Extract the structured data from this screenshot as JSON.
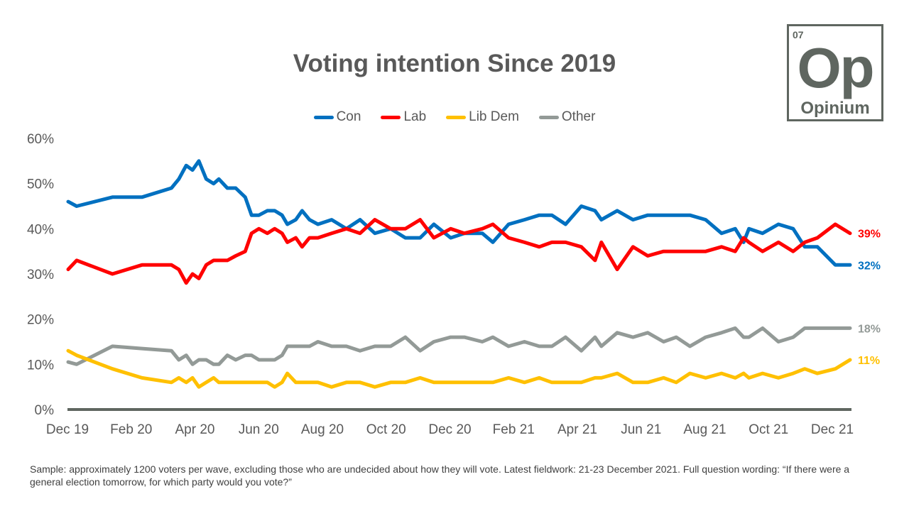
{
  "logo": {
    "number": "07",
    "symbol": "Op",
    "name": "Opinium"
  },
  "footer": "Sample: approximately 1200 voters per wave, excluding those who are undecided about how they will vote. Latest fieldwork: 21-23 December 2021. Full question wording: “If there were a general election tomorrow, for which party would you vote?”",
  "chart_data": {
    "type": "line",
    "title": "Voting intention Since 2019",
    "xlabel": "",
    "ylabel": "",
    "ylim": [
      0,
      60
    ],
    "yticks": [
      "0%",
      "10%",
      "20%",
      "30%",
      "40%",
      "50%",
      "60%"
    ],
    "xticks": [
      "Dec 19",
      "Feb 20",
      "Apr 20",
      "Jun 20",
      "Aug 20",
      "Oct 20",
      "Dec 20",
      "Feb 21",
      "Apr 21",
      "Jun 21",
      "Aug 21",
      "Oct 21",
      "Dec 21"
    ],
    "legend_position": "top",
    "grid": false,
    "x": [
      "2019-12-12",
      "2019-12-20",
      "2020-01-23",
      "2020-02-20",
      "2020-03-19",
      "2020-03-26",
      "2020-04-02",
      "2020-04-08",
      "2020-04-14",
      "2020-04-21",
      "2020-04-28",
      "2020-05-03",
      "2020-05-11",
      "2020-05-19",
      "2020-05-28",
      "2020-06-03",
      "2020-06-10",
      "2020-06-18",
      "2020-06-25",
      "2020-07-02",
      "2020-07-07",
      "2020-07-15",
      "2020-07-21",
      "2020-07-28",
      "2020-08-05",
      "2020-08-18",
      "2020-09-01",
      "2020-09-14",
      "2020-09-28",
      "2020-10-13",
      "2020-10-27",
      "2020-11-10",
      "2020-11-23",
      "2020-12-09",
      "2020-12-22",
      "2021-01-08",
      "2021-01-18",
      "2021-02-02",
      "2021-02-17",
      "2021-03-03",
      "2021-03-15",
      "2021-03-28",
      "2021-04-12",
      "2021-04-25",
      "2021-05-01",
      "2021-05-16",
      "2021-05-31",
      "2021-06-14",
      "2021-06-29",
      "2021-07-11",
      "2021-07-24",
      "2021-08-08",
      "2021-08-23",
      "2021-09-05",
      "2021-09-13",
      "2021-09-18",
      "2021-10-01",
      "2021-10-16",
      "2021-10-30",
      "2021-11-10",
      "2021-11-22",
      "2021-12-09",
      "2021-12-23"
    ],
    "series": [
      {
        "name": "Con",
        "color": "#0070c0",
        "end_label": "32%",
        "values": [
          46,
          45,
          47,
          47,
          49,
          51,
          54,
          53,
          55,
          51,
          50,
          51,
          49,
          49,
          47,
          43,
          43,
          44,
          44,
          43,
          41,
          42,
          44,
          42,
          41,
          42,
          40,
          42,
          39,
          40,
          38,
          38,
          41,
          38,
          39,
          39,
          37,
          41,
          42,
          43,
          43,
          41,
          45,
          44,
          42,
          44,
          42,
          43,
          43,
          43,
          43,
          42,
          39,
          40,
          37,
          40,
          39,
          41,
          40,
          36,
          36,
          32,
          32
        ]
      },
      {
        "name": "Lab",
        "color": "#ff0000",
        "end_label": "39%",
        "values": [
          31,
          33,
          30,
          32,
          32,
          31,
          28,
          30,
          29,
          32,
          33,
          33,
          33,
          34,
          35,
          39,
          40,
          39,
          40,
          39,
          37,
          38,
          36,
          38,
          38,
          39,
          40,
          39,
          42,
          40,
          40,
          42,
          38,
          40,
          39,
          40,
          41,
          38,
          37,
          36,
          37,
          37,
          36,
          33,
          37,
          31,
          36,
          34,
          35,
          35,
          35,
          35,
          36,
          35,
          38,
          37,
          35,
          37,
          35,
          37,
          38,
          41,
          39
        ]
      },
      {
        "name": "Lib Dem",
        "color": "#ffc000",
        "end_label": "11%",
        "values": [
          13,
          12,
          9,
          7,
          6,
          7,
          6,
          7,
          5,
          6,
          7,
          6,
          6,
          6,
          6,
          6,
          6,
          6,
          5,
          6,
          8,
          6,
          6,
          6,
          6,
          5,
          6,
          6,
          5,
          6,
          6,
          7,
          6,
          6,
          6,
          6,
          6,
          7,
          6,
          7,
          6,
          6,
          6,
          7,
          7,
          8,
          6,
          6,
          7,
          6,
          8,
          7,
          8,
          7,
          8,
          7,
          8,
          7,
          8,
          9,
          8,
          9,
          11
        ]
      },
      {
        "name": "Other",
        "color": "#939a97",
        "end_label": "18%",
        "values": [
          10.5,
          10,
          14,
          13.5,
          13,
          11,
          12,
          10,
          11,
          11,
          10,
          10,
          12,
          11,
          12,
          12,
          11,
          11,
          11,
          12,
          14,
          14,
          14,
          14,
          15,
          14,
          14,
          13,
          14,
          14,
          16,
          13,
          15,
          16,
          16,
          15,
          16,
          14,
          15,
          14,
          14,
          16,
          13,
          16,
          14,
          17,
          16,
          17,
          15,
          16,
          14,
          16,
          17,
          18,
          16,
          16,
          18,
          15,
          16,
          18,
          18,
          18,
          18
        ]
      }
    ]
  }
}
